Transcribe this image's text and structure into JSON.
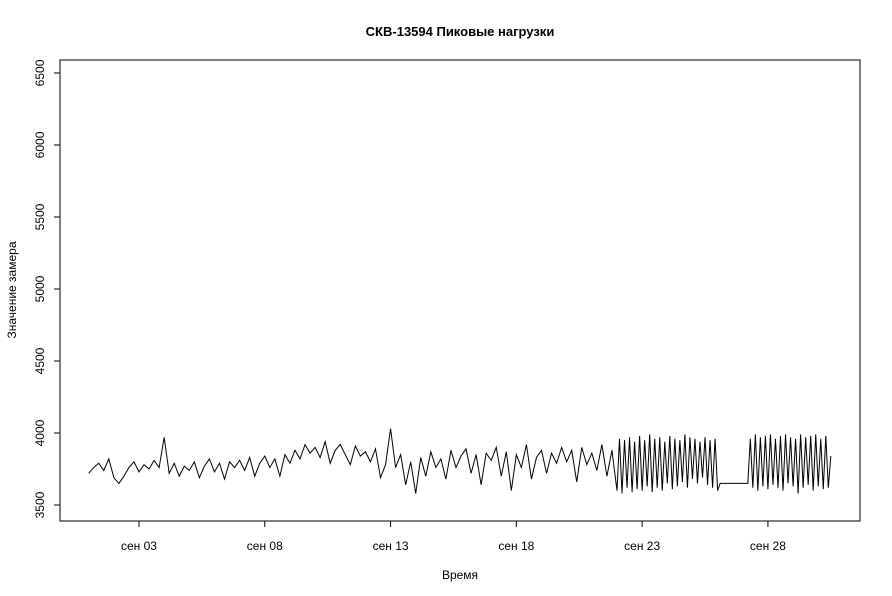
{
  "chart_data": {
    "type": "line",
    "title": "СКВ-13594 Пиковые нагрузки",
    "x_label": "Время",
    "y_label": "Значение замера",
    "xlim": [
      -0.14,
      31.66
    ],
    "ylim": [
      3389,
      6590
    ],
    "xticks": [
      {
        "value": 3,
        "label": "сен 03"
      },
      {
        "value": 8,
        "label": "сен 08"
      },
      {
        "value": 13,
        "label": "сен 13"
      },
      {
        "value": 18,
        "label": "сен 18"
      },
      {
        "value": 23,
        "label": "сен 23"
      },
      {
        "value": 28,
        "label": "сен 28"
      }
    ],
    "yticks": [
      3500,
      4000,
      4500,
      5000,
      5500,
      6000,
      6500
    ],
    "series": [
      {
        "color": "#000000",
        "x": [
          1,
          1.2,
          1.4,
          1.6,
          1.8,
          2,
          2.2,
          2.4,
          2.6,
          2.8,
          3,
          3.2,
          3.4,
          3.6,
          3.8,
          4,
          4.2,
          4.4,
          4.6,
          4.8,
          5,
          5.2,
          5.4,
          5.6,
          5.8,
          6,
          6.2,
          6.4,
          6.6,
          6.8,
          7,
          7.2,
          7.4,
          7.6,
          7.8,
          8,
          8.2,
          8.4,
          8.6,
          8.8,
          9,
          9.2,
          9.4,
          9.6,
          9.8,
          10,
          10.2,
          10.4,
          10.6,
          10.8,
          11,
          11.2,
          11.4,
          11.6,
          11.8,
          12,
          12.2,
          12.4,
          12.6,
          12.8,
          13,
          13.2,
          13.4,
          13.6,
          13.8,
          14,
          14.2,
          14.4,
          14.6,
          14.8,
          15,
          15.2,
          15.4,
          15.6,
          15.8,
          16,
          16.2,
          16.4,
          16.6,
          16.8,
          17,
          17.2,
          17.4,
          17.6,
          17.8,
          18,
          18.2,
          18.4,
          18.6,
          18.8,
          19,
          19.2,
          19.4,
          19.6,
          19.8,
          20,
          20.2,
          20.4,
          20.6,
          20.8,
          21,
          21.2,
          21.4,
          21.6,
          21.8,
          22,
          22.1,
          22.2,
          22.3,
          22.4,
          22.5,
          22.6,
          22.7,
          22.8,
          22.9,
          23,
          23.1,
          23.2,
          23.3,
          23.4,
          23.5,
          23.6,
          23.7,
          23.8,
          23.9,
          24,
          24.1,
          24.2,
          24.3,
          24.4,
          24.5,
          24.6,
          24.7,
          24.8,
          24.9,
          25,
          25.1,
          25.2,
          25.3,
          25.4,
          25.5,
          25.6,
          25.7,
          25.8,
          25.9,
          26,
          26.1,
          27.2,
          27.3,
          27.4,
          27.5,
          27.6,
          27.7,
          27.8,
          27.9,
          28,
          28.1,
          28.2,
          28.3,
          28.4,
          28.5,
          28.6,
          28.7,
          28.8,
          28.9,
          29,
          29.1,
          29.2,
          29.3,
          29.4,
          29.5,
          29.6,
          29.7,
          29.8,
          29.9,
          30,
          30.1,
          30.2,
          30.3,
          30.4,
          30.5
        ],
        "values": [
          3720,
          3760,
          3790,
          3740,
          3820,
          3690,
          3650,
          3700,
          3760,
          3800,
          3730,
          3780,
          3750,
          3810,
          3760,
          3970,
          3720,
          3790,
          3700,
          3770,
          3740,
          3800,
          3690,
          3770,
          3820,
          3730,
          3790,
          3680,
          3800,
          3760,
          3810,
          3740,
          3830,
          3700,
          3790,
          3840,
          3760,
          3820,
          3700,
          3850,
          3790,
          3880,
          3820,
          3920,
          3860,
          3900,
          3830,
          3940,
          3790,
          3880,
          3920,
          3850,
          3780,
          3910,
          3840,
          3870,
          3800,
          3890,
          3690,
          3780,
          4030,
          3760,
          3850,
          3640,
          3800,
          3580,
          3830,
          3700,
          3870,
          3760,
          3820,
          3680,
          3880,
          3760,
          3840,
          3890,
          3720,
          3850,
          3640,
          3860,
          3810,
          3900,
          3700,
          3870,
          3600,
          3850,
          3760,
          3920,
          3680,
          3830,
          3880,
          3720,
          3860,
          3790,
          3900,
          3800,
          3880,
          3660,
          3900,
          3780,
          3860,
          3740,
          3920,
          3700,
          3880,
          3600,
          3960,
          3580,
          3950,
          3620,
          3970,
          3590,
          3940,
          3610,
          3980,
          3600,
          3950,
          3630,
          3990,
          3590,
          3960,
          3620,
          3970,
          3600,
          3940,
          3650,
          3980,
          3610,
          3960,
          3630,
          3950,
          3660,
          3990,
          3620,
          3970,
          3680,
          3960,
          3650,
          3940,
          3690,
          3970,
          3640,
          3950,
          3620,
          3960,
          3600,
          3650,
          3650,
          3960,
          3620,
          3990,
          3600,
          3970,
          3630,
          3980,
          3610,
          3990,
          3640,
          3960,
          3620,
          3980,
          3600,
          3990,
          3650,
          3970,
          3630,
          3960,
          3580,
          3990,
          3620,
          3970,
          3640,
          3980,
          3600,
          3990,
          3630,
          3960,
          3610,
          3980,
          3620,
          3840
        ]
      }
    ]
  }
}
